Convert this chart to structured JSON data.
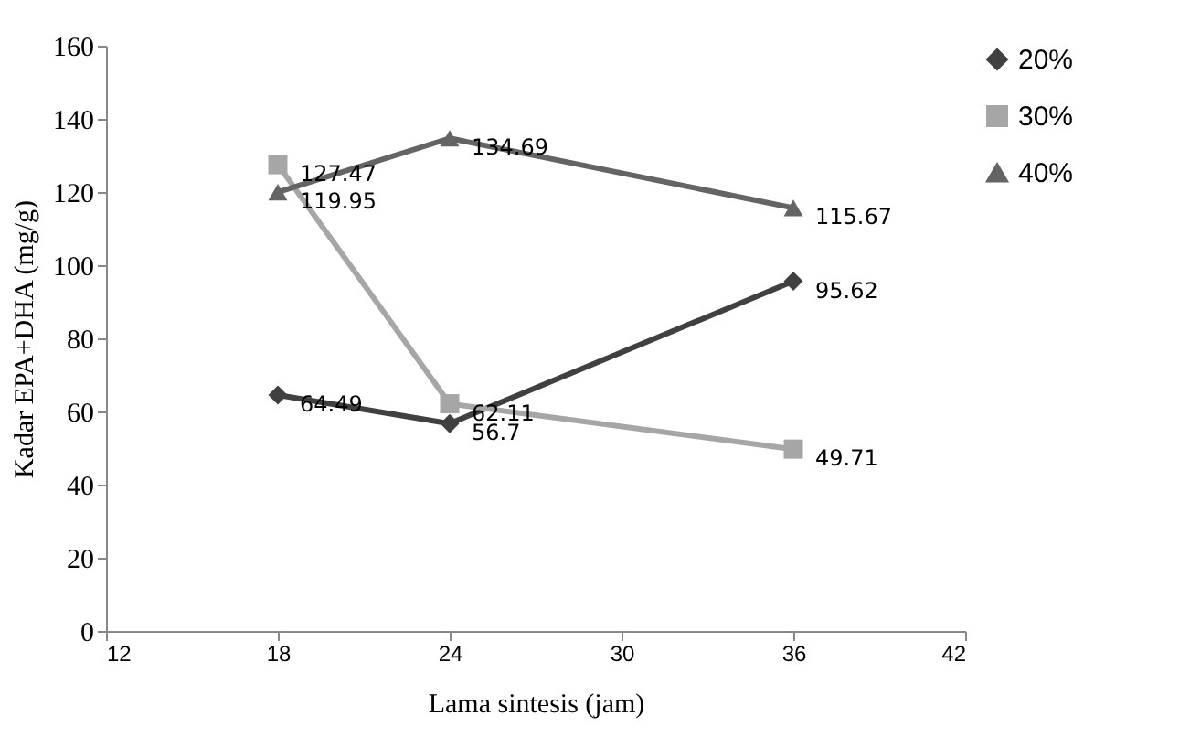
{
  "chart_data": {
    "type": "line",
    "xlabel": "Lama sintesis (jam)",
    "ylabel": "Kadar EPA+DHA (mg/g)",
    "x": [
      18,
      24,
      36
    ],
    "series": [
      {
        "name": "20%",
        "color": "#404040",
        "marker": "diamond",
        "values": [
          64.49,
          56.7,
          95.62
        ]
      },
      {
        "name": "30%",
        "color": "#a6a6a6",
        "marker": "square",
        "values": [
          127.47,
          62.11,
          49.71
        ]
      },
      {
        "name": "40%",
        "color": "#646464",
        "marker": "triangle",
        "values": [
          119.95,
          134.69,
          115.67
        ]
      }
    ],
    "xlim": [
      12,
      42
    ],
    "xticks": [
      12,
      18,
      24,
      30,
      36,
      42
    ],
    "ylim": [
      0,
      160
    ],
    "yticks": [
      0,
      20,
      40,
      60,
      80,
      100,
      120,
      140,
      160
    ],
    "grid": false,
    "legend": "right",
    "data_labels": true,
    "line_style": "solid"
  }
}
